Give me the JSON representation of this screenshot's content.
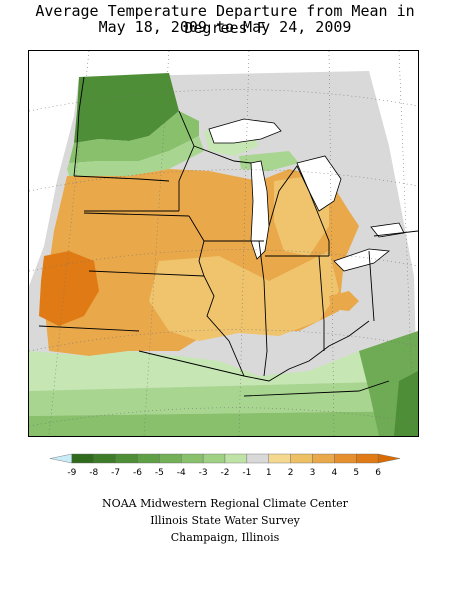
{
  "title_line1": "Average Temperature Departure from Mean in Degrees F",
  "title_line2": "May 18, 2009 to May 24, 2009",
  "legend": {
    "ticks": [
      "-9",
      "-8",
      "-7",
      "-6",
      "-5",
      "-4",
      "-3",
      "-2",
      "-1",
      "1",
      "2",
      "3",
      "4",
      "5",
      "6"
    ],
    "colors": [
      "#c8ecf8",
      "#2f6a1d",
      "#3e7c2a",
      "#4e8e37",
      "#5f9f46",
      "#73b058",
      "#88c06b",
      "#a0d084",
      "#bfe3a6",
      "#d9d9d9",
      "#f4d890",
      "#edc064",
      "#e9a84a",
      "#e58f2f",
      "#e07a14",
      "#d96b00"
    ]
  },
  "colors": {
    "dark_green": "#3e7c2a",
    "mid_green": "#6faa55",
    "light_green": "#a8d690",
    "pale_green": "#c6e7b3",
    "gray": "#d9d9d9",
    "light_orange": "#efc46d",
    "orange": "#e9a84a",
    "deep_orange": "#e07a14"
  },
  "credits": {
    "line1": "NOAA Midwestern Regional Climate Center",
    "line2": "Illinois State Water Survey",
    "line3": "Champaign, Illinois"
  }
}
